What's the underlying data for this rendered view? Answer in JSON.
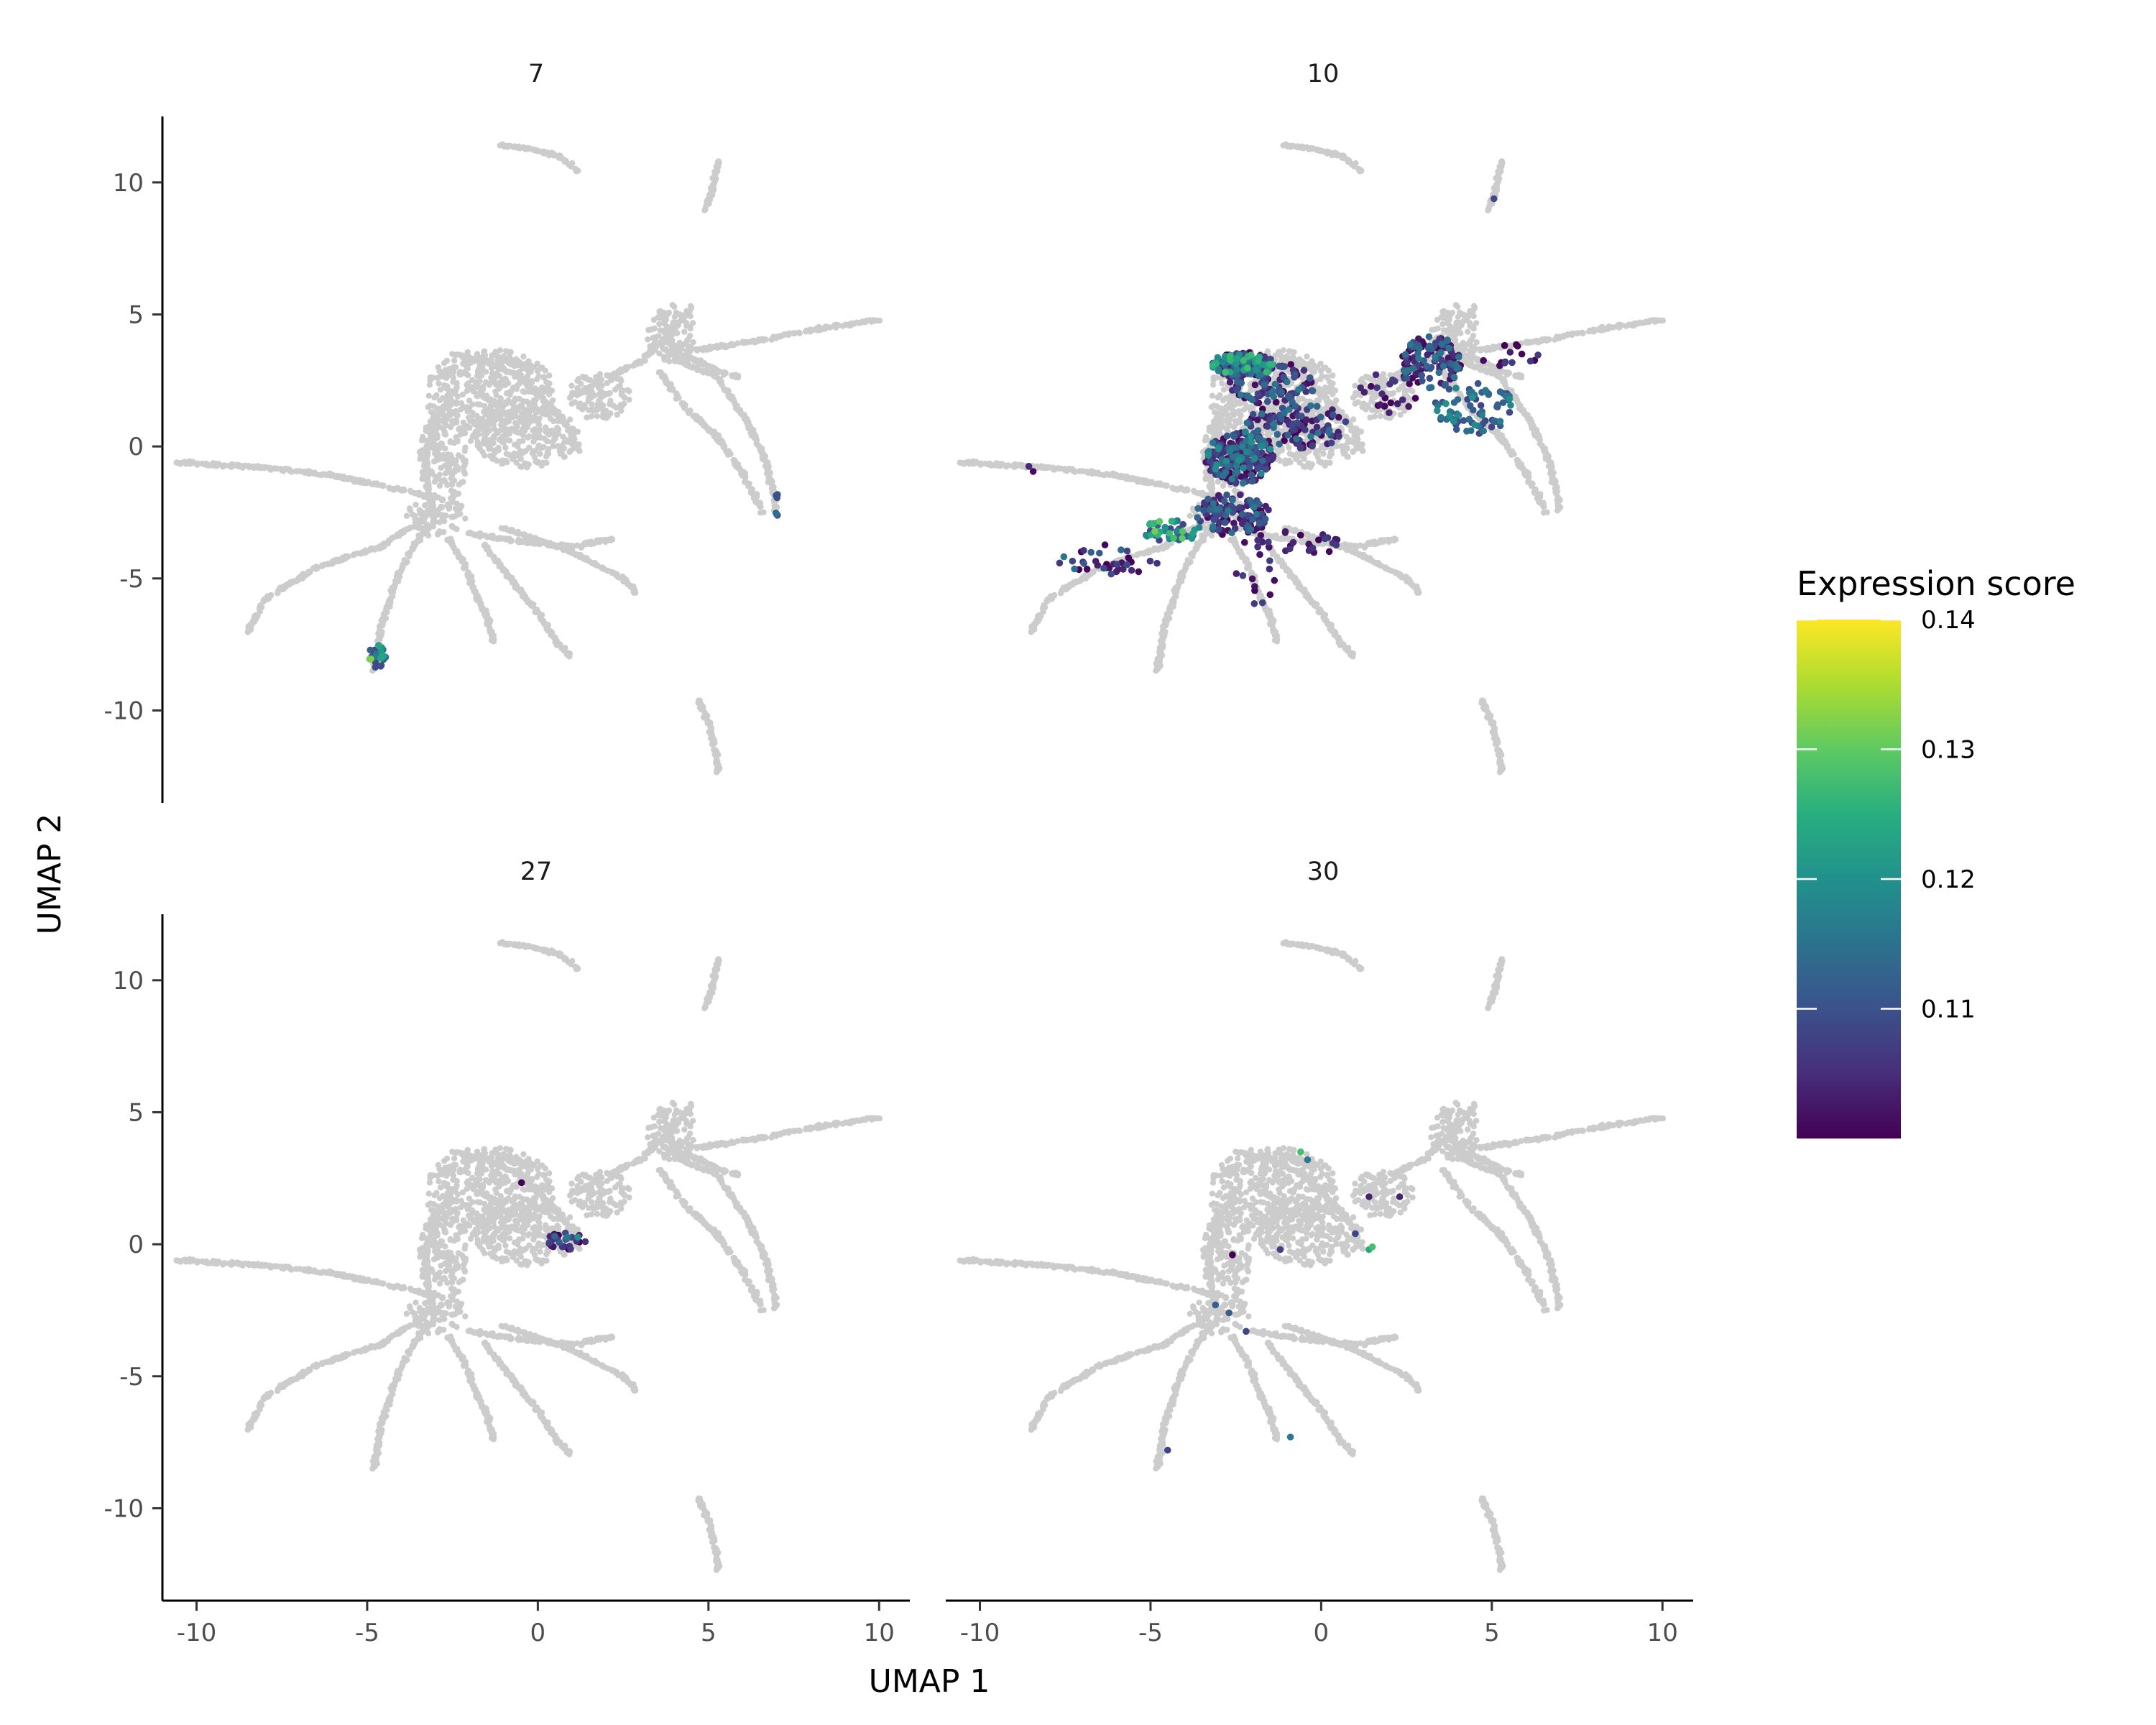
{
  "chart_data": {
    "type": "scatter",
    "panels": [
      "7",
      "10",
      "27",
      "30"
    ],
    "xlabel": "UMAP 1",
    "ylabel": "UMAP 2",
    "x_ticks": [
      "-10",
      "-5",
      "0",
      "5",
      "10"
    ],
    "y_ticks": [
      "10",
      "5",
      "0",
      "-5",
      "-10"
    ],
    "xlim": [
      -11,
      10.9
    ],
    "ylim": [
      -13.5,
      12.5
    ],
    "background_color": "#cccccc",
    "grid": false,
    "legend": {
      "title": "Expression score",
      "position": "right",
      "type": "continuous",
      "palette": "viridis",
      "range": [
        0.1,
        0.14
      ],
      "breaks": [
        "0.14",
        "0.13",
        "0.12",
        "0.11"
      ]
    },
    "background_structure": [
      {
        "name": "left-arm",
        "points": [
          [
            -10.6,
            -0.6
          ],
          [
            -8,
            -0.8
          ],
          [
            -6,
            -1.1
          ],
          [
            -4.2,
            -1.6
          ],
          [
            -3.2,
            -1.9
          ]
        ]
      },
      {
        "name": "lower-left-branch",
        "points": [
          [
            -3.0,
            -2.4
          ],
          [
            -4.6,
            -3.8
          ],
          [
            -6.5,
            -4.6
          ],
          [
            -8.0,
            -5.8
          ],
          [
            -8.5,
            -7.0
          ]
        ]
      },
      {
        "name": "lower-mid-branch",
        "points": [
          [
            -3.3,
            -3.1
          ],
          [
            -4.0,
            -4.6
          ],
          [
            -4.6,
            -6.8
          ],
          [
            -4.8,
            -8.5
          ]
        ]
      },
      {
        "name": "center-down",
        "points": [
          [
            -2.6,
            -3.5
          ],
          [
            -2.1,
            -4.6
          ],
          [
            -1.9,
            -5.4
          ],
          [
            -1.5,
            -6.4
          ],
          [
            -1.3,
            -7.4
          ]
        ]
      },
      {
        "name": "center-down-2",
        "points": [
          [
            -1.6,
            -3.7
          ],
          [
            -0.8,
            -5.0
          ],
          [
            0,
            -6.3
          ],
          [
            0.6,
            -7.5
          ],
          [
            1.0,
            -8.0
          ]
        ]
      },
      {
        "name": "lower-right-branch",
        "points": [
          [
            -2.0,
            -3.3
          ],
          [
            -0.5,
            -3.6
          ],
          [
            1.0,
            -3.8
          ],
          [
            2.2,
            -3.5
          ]
        ]
      },
      {
        "name": "lower-right-branch-2",
        "points": [
          [
            -1.0,
            -3.1
          ],
          [
            1.0,
            -4.0
          ],
          [
            2.5,
            -5.0
          ],
          [
            2.9,
            -5.6
          ]
        ]
      },
      {
        "name": "body-left",
        "points": [
          [
            -3.2,
            -2.0
          ],
          [
            -3.3,
            -0.5
          ],
          [
            -3.0,
            1.0
          ],
          [
            -2.5,
            2.0
          ]
        ]
      },
      {
        "name": "body-center",
        "points": [
          [
            -2.5,
            3.5
          ],
          [
            -1.5,
            3.2
          ],
          [
            -0.5,
            2.6
          ],
          [
            0.3,
            1.6
          ],
          [
            1.0,
            0.6
          ],
          [
            1.2,
            -0.2
          ]
        ]
      },
      {
        "name": "neck",
        "points": [
          [
            1.2,
            2.0
          ],
          [
            2.0,
            2.6
          ],
          [
            3.0,
            3.2
          ],
          [
            3.9,
            4.3
          ],
          [
            4.5,
            5.3
          ]
        ]
      },
      {
        "name": "long-right-arm",
        "points": [
          [
            4.3,
            3.6
          ],
          [
            6.0,
            3.9
          ],
          [
            8.0,
            4.4
          ],
          [
            10.0,
            4.8
          ]
        ]
      },
      {
        "name": "right-branch-1",
        "points": [
          [
            4.0,
            3.3
          ],
          [
            5.2,
            2.7
          ],
          [
            6.1,
            1.0
          ],
          [
            6.7,
            -0.6
          ],
          [
            7.0,
            -2.5
          ]
        ]
      },
      {
        "name": "right-branch-2",
        "points": [
          [
            3.6,
            2.8
          ],
          [
            4.3,
            1.5
          ],
          [
            5.3,
            0.3
          ],
          [
            6.0,
            -1.0
          ],
          [
            6.6,
            -2.5
          ]
        ]
      },
      {
        "name": "right-branch-3",
        "points": [
          [
            3.8,
            3.6
          ],
          [
            4.6,
            3.3
          ],
          [
            5.4,
            2.8
          ],
          [
            6.0,
            2.6
          ]
        ]
      },
      {
        "name": "top-island",
        "points": [
          [
            -1.1,
            11.4
          ],
          [
            -0.3,
            11.3
          ],
          [
            0.6,
            11.0
          ],
          [
            1.2,
            10.4
          ]
        ]
      },
      {
        "name": "top-right-island",
        "points": [
          [
            4.9,
            8.9
          ],
          [
            5.1,
            9.7
          ],
          [
            5.3,
            10.8
          ]
        ]
      },
      {
        "name": "bottom-right-island",
        "points": [
          [
            4.7,
            -9.6
          ],
          [
            5.0,
            -10.4
          ],
          [
            5.2,
            -11.5
          ],
          [
            5.3,
            -12.4
          ]
        ]
      }
    ],
    "background_blobs": [
      {
        "name": "upper-body",
        "center": [
          -1.4,
          2.0
        ],
        "radius": [
          1.9,
          1.7
        ]
      },
      {
        "name": "middle-body",
        "center": [
          -0.4,
          0.4
        ],
        "radius": [
          1.6,
          1.2
        ]
      },
      {
        "name": "left-body",
        "center": [
          -2.8,
          -0.5
        ],
        "radius": [
          0.7,
          1.8
        ]
      },
      {
        "name": "junction",
        "center": [
          -3.0,
          -2.6
        ],
        "radius": [
          0.9,
          0.8
        ]
      },
      {
        "name": "neck-blob",
        "center": [
          3.9,
          4.3
        ],
        "radius": [
          0.7,
          1.1
        ]
      },
      {
        "name": "right-blob",
        "center": [
          1.8,
          1.9
        ],
        "radius": [
          0.9,
          0.9
        ]
      }
    ],
    "series": [
      {
        "name": "7",
        "highlights": [
          {
            "region": [
              -4.7,
              -7.9,
              0.25,
              0.5
            ],
            "n": 22,
            "score": [
              0.11,
              0.14
            ]
          },
          {
            "region": [
              6.95,
              -2.2,
              0.1,
              0.6
            ],
            "n": 6,
            "score": [
              0.11,
              0.12
            ]
          }
        ]
      },
      {
        "name": "10",
        "highlights": [
          {
            "region": [
              -2.3,
              3.1,
              0.9,
              0.5
            ],
            "n": 170,
            "score": [
              0.1,
              0.135
            ]
          },
          {
            "region": [
              -1.4,
              2.4,
              1.3,
              0.8
            ],
            "n": 110,
            "score": [
              0.1,
              0.12
            ]
          },
          {
            "region": [
              -0.7,
              0.8,
              1.5,
              0.9
            ],
            "n": 110,
            "score": [
              0.1,
              0.12
            ]
          },
          {
            "region": [
              -2.4,
              -0.4,
              1.0,
              1.0
            ],
            "n": 220,
            "score": [
              0.1,
              0.125
            ]
          },
          {
            "region": [
              -2.6,
              -2.6,
              1.1,
              0.8
            ],
            "n": 120,
            "score": [
              0.1,
              0.12
            ]
          },
          {
            "region": [
              -4.4,
              -3.2,
              0.9,
              0.4
            ],
            "n": 45,
            "score": [
              0.11,
              0.14
            ]
          },
          {
            "region": [
              -6.2,
              -4.3,
              1.5,
              0.6
            ],
            "n": 35,
            "score": [
              0.1,
              0.12
            ]
          },
          {
            "region": [
              -1.9,
              -4.6,
              0.6,
              1.6
            ],
            "n": 18,
            "score": [
              0.1,
              0.11
            ]
          },
          {
            "region": [
              -0.6,
              -3.6,
              1.3,
              0.5
            ],
            "n": 22,
            "score": [
              0.1,
              0.11
            ]
          },
          {
            "region": [
              3.2,
              3.2,
              0.9,
              1.0
            ],
            "n": 120,
            "score": [
              0.1,
              0.12
            ]
          },
          {
            "region": [
              4.5,
              1.4,
              1.2,
              1.0
            ],
            "n": 75,
            "score": [
              0.11,
              0.125
            ]
          },
          {
            "region": [
              1.8,
              2.0,
              1.2,
              0.8
            ],
            "n": 22,
            "score": [
              0.1,
              0.11
            ]
          },
          {
            "region": [
              5.6,
              3.4,
              0.9,
              0.5
            ],
            "n": 14,
            "score": [
              0.1,
              0.11
            ]
          },
          {
            "region": [
              -8.2,
              -0.8,
              0.5,
              0.2
            ],
            "n": 2,
            "score": [
              0.1,
              0.11
            ]
          },
          {
            "region": [
              5.0,
              9.4,
              0.1,
              0.1
            ],
            "n": 1,
            "score": [
              0.11,
              0.12
            ]
          }
        ]
      },
      {
        "name": "27",
        "highlights": [
          {
            "region": [
              0.8,
              0.15,
              0.6,
              0.35
            ],
            "n": 28,
            "score": [
              0.1,
              0.125
            ]
          },
          {
            "region": [
              -0.5,
              2.3,
              0.1,
              0.1
            ],
            "n": 1,
            "score": [
              0.1,
              0.105
            ]
          }
        ]
      },
      {
        "name": "30",
        "points": [
          [
            -0.6,
            3.5,
            0.135
          ],
          [
            -0.4,
            3.2,
            0.12
          ],
          [
            1.4,
            1.8,
            0.105
          ],
          [
            2.3,
            1.8,
            0.105
          ],
          [
            1.0,
            0.4,
            0.11
          ],
          [
            1.5,
            -0.1,
            0.135
          ],
          [
            1.4,
            -0.2,
            0.13
          ],
          [
            -2.6,
            -0.4,
            0.1
          ],
          [
            -1.2,
            -0.2,
            0.11
          ],
          [
            -3.1,
            -2.3,
            0.115
          ],
          [
            -2.7,
            -2.6,
            0.115
          ],
          [
            -4.5,
            -7.8,
            0.11
          ],
          [
            -0.9,
            -7.3,
            0.12
          ],
          [
            -2.2,
            -3.3,
            0.11
          ]
        ]
      }
    ]
  }
}
